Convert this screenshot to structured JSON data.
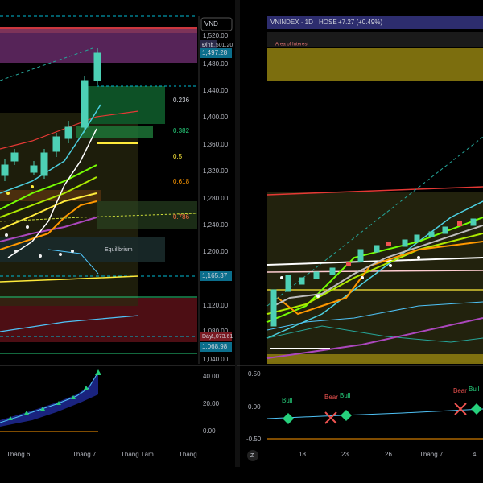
{
  "left_panel": {
    "currency": "VND",
    "price_axis": [
      "1,520.00",
      "1,480.00",
      "1,440.00",
      "1,400.00",
      "1,360.00",
      "1,320.00",
      "1,280.00",
      "1,240.00",
      "1,200.00",
      "1,120.00",
      "1,080.00",
      "1,040.00"
    ],
    "top_label": "Đỉnh",
    "top_price": "1,501.20",
    "last_price": "1,497.28",
    "mid_price": "1,165.37",
    "bottom_label": "Đáy",
    "bottom_price_1": "1,073.61",
    "bottom_price_2": "1,068.98",
    "fib_levels": [
      "0.236",
      "0.382",
      "0.5",
      "0.618",
      "0.786"
    ],
    "equilibrium": "Equilibrium",
    "oscillator_axis": [
      "40.00",
      "20.00",
      "0.00"
    ],
    "time_axis": [
      "Tháng 6",
      "Tháng 7",
      "Tháng Tám",
      "Tháng"
    ]
  },
  "right_panel": {
    "symbol": "VNINDEX · 1D · HOSE",
    "change": "+7.27 (+0.49%)",
    "zone_label": "Area of Interest",
    "oscillator_axis": [
      "0.50",
      "0.00",
      "-0.50"
    ],
    "signals": [
      "Bull",
      "Bear",
      "Bull",
      "Bear",
      "Bull"
    ],
    "time_axis": [
      "18",
      "23",
      "26",
      "Tháng 7",
      "4"
    ],
    "zoom": "Z"
  }
}
